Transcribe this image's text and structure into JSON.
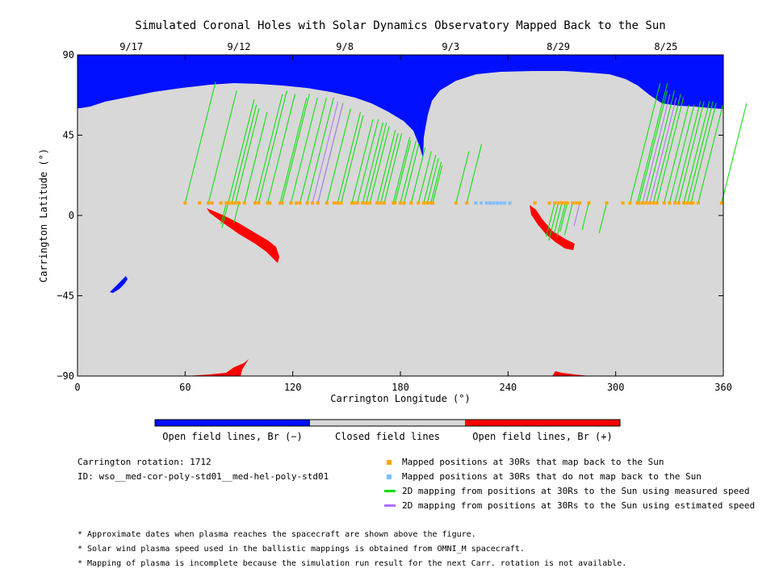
{
  "chart_data": {
    "type": "map",
    "title": "Simulated Coronal Holes with Solar Dynamics Observatory Mapped Back to the Sun",
    "xlabel": "Carrington Longitude (°)",
    "ylabel": "Carrington Latitude (°)",
    "xlim": [
      0,
      360
    ],
    "ylim": [
      -90,
      90
    ],
    "xticks": [
      "0",
      "60",
      "120",
      "180",
      "240",
      "300",
      "360"
    ],
    "yticks": [
      "90",
      "45",
      "0",
      "-45",
      "-90"
    ],
    "top_dates": [
      {
        "label": "9/17",
        "lon": 30
      },
      {
        "label": "9/12",
        "lon": 90
      },
      {
        "label": "9/8",
        "lon": 149
      },
      {
        "label": "9/3",
        "lon": 208
      },
      {
        "label": "8/29",
        "lon": 268
      },
      {
        "label": "8/25",
        "lon": 328
      }
    ],
    "mapped_lat": 7,
    "mapped_points_lon": [
      60,
      68,
      73,
      75,
      80,
      83,
      84,
      86,
      88,
      90,
      93,
      99,
      101,
      106,
      107,
      113,
      114,
      119,
      122,
      124,
      128,
      131,
      134,
      139,
      143,
      145,
      147,
      153,
      154,
      156,
      159,
      161,
      163,
      167,
      169,
      171,
      176,
      177,
      180,
      182,
      186,
      190,
      193,
      195,
      197,
      198,
      211,
      217,
      230,
      255,
      263,
      266,
      268,
      270,
      272,
      273,
      276,
      278,
      280,
      285,
      295,
      304,
      308,
      312,
      313,
      315,
      317,
      319,
      321,
      323,
      327,
      330,
      333,
      335,
      338,
      340,
      342,
      343,
      346,
      359
    ],
    "unmapped_points_lon": [
      222,
      225,
      228,
      230,
      232,
      234,
      236,
      238,
      241
    ],
    "measured_lines": [
      [
        60,
        75
      ],
      [
        73,
        70
      ],
      [
        84,
        65
      ],
      [
        86,
        62
      ],
      [
        88,
        60
      ],
      [
        93,
        58
      ],
      [
        99,
        68
      ],
      [
        101,
        70
      ],
      [
        106,
        68
      ],
      [
        113,
        66
      ],
      [
        114,
        68
      ],
      [
        119,
        66
      ],
      [
        124,
        66
      ],
      [
        128,
        66
      ],
      [
        134,
        63
      ],
      [
        139,
        60
      ],
      [
        145,
        58
      ],
      [
        147,
        56
      ],
      [
        153,
        54
      ],
      [
        156,
        54
      ],
      [
        159,
        52
      ],
      [
        161,
        52
      ],
      [
        163,
        50
      ],
      [
        167,
        48
      ],
      [
        169,
        46
      ],
      [
        171,
        46
      ],
      [
        176,
        44
      ],
      [
        177,
        42
      ],
      [
        180,
        42
      ],
      [
        182,
        40
      ],
      [
        186,
        38
      ],
      [
        190,
        36
      ],
      [
        193,
        34
      ],
      [
        195,
        32
      ],
      [
        197,
        30
      ],
      [
        198,
        28
      ],
      [
        211,
        36
      ],
      [
        217,
        40
      ],
      [
        308,
        74
      ],
      [
        312,
        74
      ],
      [
        313,
        70
      ],
      [
        317,
        70
      ],
      [
        321,
        68
      ],
      [
        323,
        66
      ],
      [
        327,
        62
      ],
      [
        330,
        62
      ],
      [
        333,
        64
      ],
      [
        335,
        64
      ],
      [
        338,
        64
      ],
      [
        340,
        64
      ],
      [
        342,
        63
      ],
      [
        346,
        62
      ],
      [
        359,
        63
      ]
    ],
    "measured_lines_down": [
      [
        266,
        -12
      ],
      [
        268,
        -14
      ],
      [
        270,
        -10
      ],
      [
        272,
        -12
      ],
      [
        273,
        -9
      ],
      [
        276,
        -11
      ],
      [
        285,
        -8
      ],
      [
        295,
        -10
      ],
      [
        83,
        -5
      ],
      [
        84,
        -7
      ],
      [
        90,
        -4
      ]
    ],
    "estimated_lines": [
      [
        131,
        64
      ],
      [
        134,
        62
      ],
      [
        315,
        68
      ],
      [
        319,
        66
      ]
    ],
    "estimated_lines_down": [
      [
        280,
        -6
      ]
    ],
    "colorbar": {
      "open_neg_label": "Open field lines, Br (−)",
      "closed_label": "Closed field lines",
      "open_pos_label": "Open field lines, Br (+)"
    },
    "colors": {
      "open_neg": "#0010ff",
      "closed": "#d8d8d8",
      "open_pos": "#ff0000",
      "mapped": "#ffa500",
      "unmapped": "#7fbfff",
      "measured": "#00e000",
      "estimated": "#b070ff"
    }
  },
  "info": {
    "rotation": "Carrington rotation: 1712",
    "id": "ID: wso__med-cor-poly-std01__med-hel-poly-std01"
  },
  "legend": {
    "mapped": "Mapped positions at 30Rs that map back to the Sun",
    "unmapped": "Mapped positions at 30Rs that do not map back to the Sun",
    "measured": "2D mapping from positions at 30Rs to the Sun using measured speed",
    "estimated": "2D mapping from positions at 30Rs to the Sun using estimated speed"
  },
  "notes": [
    "* Approximate dates when plasma reaches the spacecraft are shown above the figure.",
    "* Solar wind plasma speed used in the ballistic mappings is obtained from OMNI_M spacecraft.",
    "* Mapping of plasma is incomplete because the simulation run result for the next Carr. rotation is not available."
  ]
}
